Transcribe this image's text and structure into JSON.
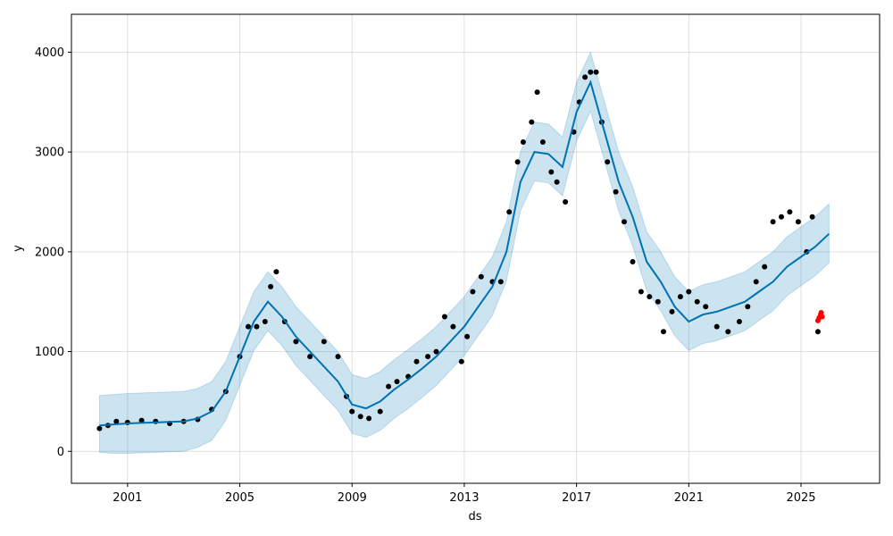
{
  "chart_data": {
    "type": "scatter",
    "title": "",
    "xlabel": "ds",
    "ylabel": "y",
    "x_ticks": [
      "2001",
      "2005",
      "2009",
      "2013",
      "2017",
      "2021",
      "2025"
    ],
    "x_tick_values": [
      2001,
      2005,
      2009,
      2013,
      2017,
      2021,
      2025
    ],
    "y_ticks": [
      "0",
      "1000",
      "2000",
      "3000",
      "4000"
    ],
    "y_tick_values": [
      0,
      1000,
      2000,
      3000,
      4000
    ],
    "xlim": [
      1999.0,
      2027.8
    ],
    "ylim": [
      -320,
      4380
    ],
    "grid": true,
    "colors": {
      "observed": "#000000",
      "forecast": "#0072B2",
      "interval": "#0072B2",
      "highlight": "#ff0000"
    },
    "series": [
      {
        "role": "observed",
        "x": [
          2000.0,
          2000.3,
          2000.6,
          2001.0,
          2001.5,
          2002.0,
          2002.5,
          2003.0,
          2003.5,
          2004.0,
          2004.5,
          2005.0,
          2005.3,
          2005.6,
          2005.9,
          2006.1,
          2006.3,
          2006.6,
          2007.0,
          2007.5,
          2008.0,
          2008.5,
          2008.8,
          2009.0,
          2009.3,
          2009.6,
          2010.0,
          2010.3,
          2010.6,
          2011.0,
          2011.3,
          2011.7,
          2012.0,
          2012.3,
          2012.6,
          2012.9,
          2013.1,
          2013.3,
          2013.6,
          2014.0,
          2014.3,
          2014.6,
          2014.9,
          2015.1,
          2015.4,
          2015.6,
          2015.8,
          2016.1,
          2016.3,
          2016.6,
          2016.9,
          2017.1,
          2017.3,
          2017.5,
          2017.7,
          2017.9,
          2018.1,
          2018.4,
          2018.7,
          2019.0,
          2019.3,
          2019.6,
          2019.9,
          2020.1,
          2020.4,
          2020.7,
          2021.0,
          2021.3,
          2021.6,
          2022.0,
          2022.4,
          2022.8,
          2023.1,
          2023.4,
          2023.7,
          2024.0,
          2024.3,
          2024.6,
          2024.9,
          2025.2,
          2025.4,
          2025.6
        ],
        "y": [
          230,
          260,
          300,
          290,
          310,
          300,
          280,
          300,
          320,
          420,
          600,
          950,
          1250,
          1250,
          1300,
          1650,
          1800,
          1300,
          1100,
          950,
          1100,
          950,
          550,
          400,
          350,
          330,
          400,
          650,
          700,
          750,
          900,
          950,
          1000,
          1350,
          1250,
          900,
          1150,
          1600,
          1750,
          1700,
          1700,
          2400,
          2900,
          3100,
          3300,
          3600,
          3100,
          2800,
          2700,
          2500,
          3200,
          3500,
          3750,
          3800,
          3800,
          3300,
          2900,
          2600,
          2300,
          1900,
          1600,
          1550,
          1500,
          1200,
          1400,
          1550,
          1600,
          1500,
          1450,
          1250,
          1200,
          1300,
          1450,
          1700,
          1850,
          2300,
          2350,
          2400,
          2300,
          2000,
          2350,
          1200
        ]
      },
      {
        "role": "forecast",
        "name": "",
        "x": [
          2000.0,
          2000.5,
          2001.0,
          2001.5,
          2002.0,
          2002.5,
          2003.0,
          2003.5,
          2004.0,
          2004.5,
          2005.0,
          2005.5,
          2006.0,
          2006.5,
          2007.0,
          2007.5,
          2008.0,
          2008.5,
          2009.0,
          2009.5,
          2010.0,
          2010.5,
          2011.0,
          2011.5,
          2012.0,
          2012.5,
          2013.0,
          2013.5,
          2014.0,
          2014.5,
          2015.0,
          2015.5,
          2016.0,
          2016.5,
          2017.0,
          2017.5,
          2018.0,
          2018.5,
          2019.0,
          2019.5,
          2020.0,
          2020.5,
          2021.0,
          2021.5,
          2022.0,
          2022.5,
          2023.0,
          2023.5,
          2024.0,
          2024.5,
          2025.0,
          2025.5,
          2026.0
        ],
        "y": [
          260,
          270,
          280,
          285,
          290,
          295,
          300,
          330,
          400,
          600,
          950,
          1300,
          1500,
          1350,
          1150,
          1000,
          850,
          700,
          470,
          430,
          500,
          620,
          720,
          830,
          950,
          1100,
          1250,
          1450,
          1650,
          2000,
          2700,
          3000,
          2980,
          2850,
          3400,
          3700,
          3200,
          2700,
          2350,
          1900,
          1700,
          1450,
          1300,
          1370,
          1400,
          1450,
          1500,
          1600,
          1700,
          1850,
          1950,
          2050,
          2180
        ]
      },
      {
        "role": "interval",
        "x": [
          2000.0,
          2000.5,
          2001.0,
          2001.5,
          2002.0,
          2002.5,
          2003.0,
          2003.5,
          2004.0,
          2004.5,
          2005.0,
          2005.5,
          2006.0,
          2006.5,
          2007.0,
          2007.5,
          2008.0,
          2008.5,
          2009.0,
          2009.5,
          2010.0,
          2010.5,
          2011.0,
          2011.5,
          2012.0,
          2012.5,
          2013.0,
          2013.5,
          2014.0,
          2014.5,
          2015.0,
          2015.5,
          2016.0,
          2016.5,
          2017.0,
          2017.5,
          2018.0,
          2018.5,
          2019.0,
          2019.5,
          2020.0,
          2020.5,
          2021.0,
          2021.5,
          2022.0,
          2022.5,
          2023.0,
          2023.5,
          2024.0,
          2024.5,
          2025.0,
          2025.5,
          2026.0
        ],
        "y_lower": [
          -10,
          -20,
          -20,
          -15,
          -10,
          -5,
          0,
          40,
          110,
          310,
          660,
          1010,
          1210,
          1060,
          860,
          710,
          560,
          410,
          180,
          140,
          210,
          330,
          430,
          540,
          660,
          810,
          960,
          1160,
          1360,
          1710,
          2410,
          2710,
          2690,
          2560,
          3110,
          3410,
          2910,
          2410,
          2060,
          1610,
          1410,
          1160,
          1010,
          1080,
          1110,
          1160,
          1210,
          1310,
          1410,
          1560,
          1660,
          1760,
          1890
        ],
        "y_upper": [
          560,
          570,
          580,
          585,
          590,
          595,
          600,
          630,
          700,
          900,
          1250,
          1600,
          1800,
          1650,
          1450,
          1300,
          1150,
          1000,
          770,
          730,
          800,
          920,
          1020,
          1130,
          1250,
          1400,
          1550,
          1750,
          1950,
          2300,
          3000,
          3300,
          3280,
          3150,
          3700,
          4000,
          3500,
          3000,
          2650,
          2200,
          2000,
          1750,
          1600,
          1670,
          1700,
          1750,
          1800,
          1900,
          2000,
          2150,
          2250,
          2350,
          2480
        ]
      },
      {
        "role": "highlight",
        "x": [
          2025.6,
          2025.65,
          2025.7,
          2025.72,
          2025.75
        ],
        "y": [
          1310,
          1340,
          1370,
          1390,
          1350
        ]
      }
    ]
  }
}
